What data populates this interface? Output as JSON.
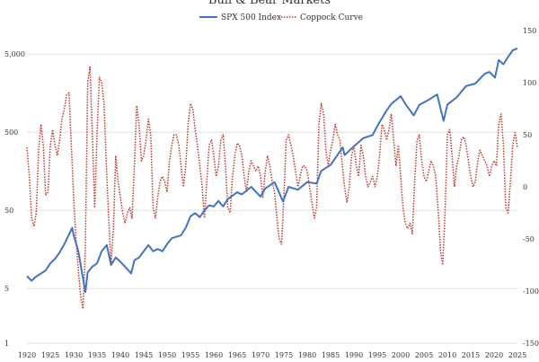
{
  "chart_data": {
    "type": "line",
    "title": "Bull & Bear Markets",
    "legend_position": "top-center",
    "grid": {
      "y_major": true
    },
    "x_axis": {
      "range": [
        1920,
        2025
      ],
      "ticks": [
        "1920",
        "1925",
        "1930",
        "1935",
        "1940",
        "1945",
        "1950",
        "1955",
        "1960",
        "1965",
        "1970",
        "1975",
        "1980",
        "1985",
        "1990",
        "1995",
        "2000",
        "2005",
        "2010",
        "2015",
        "2020",
        "2025"
      ]
    },
    "y_left": {
      "scale": "log",
      "range": [
        1,
        10000
      ],
      "ticks": [
        {
          "value": 1,
          "label": "1"
        },
        {
          "value": 5,
          "label": "5"
        },
        {
          "value": 50,
          "label": "50"
        },
        {
          "value": 500,
          "label": "500"
        },
        {
          "value": 5000,
          "label": "5,000"
        }
      ]
    },
    "y_right": {
      "scale": "linear",
      "range": [
        -150,
        150
      ],
      "ticks": [
        "-150",
        "-100",
        "-50",
        "0",
        "50",
        "100",
        "150"
      ]
    },
    "series": [
      {
        "name": "SPX 500 Index",
        "axis": "left",
        "color": "#4472c4",
        "style": "solid",
        "points": [
          [
            1920,
            7.2
          ],
          [
            1921,
            6.3
          ],
          [
            1921.8,
            7.0
          ],
          [
            1923,
            7.8
          ],
          [
            1924,
            8.5
          ],
          [
            1925,
            10.5
          ],
          [
            1926,
            12.0
          ],
          [
            1927,
            14.5
          ],
          [
            1928,
            18.5
          ],
          [
            1929.7,
            30.0
          ],
          [
            1930,
            24.0
          ],
          [
            1931,
            15.0
          ],
          [
            1932.5,
            4.5
          ],
          [
            1933,
            8.0
          ],
          [
            1934,
            9.5
          ],
          [
            1935,
            10.5
          ],
          [
            1936,
            15.0
          ],
          [
            1937.1,
            18.0
          ],
          [
            1938,
            10.0
          ],
          [
            1939,
            12.5
          ],
          [
            1940,
            11.0
          ],
          [
            1941,
            9.5
          ],
          [
            1942.3,
            7.8
          ],
          [
            1943,
            11.5
          ],
          [
            1944,
            12.5
          ],
          [
            1946,
            18.0
          ],
          [
            1947,
            15.0
          ],
          [
            1948,
            16.0
          ],
          [
            1949,
            15.0
          ],
          [
            1950,
            18.5
          ],
          [
            1951,
            22.0
          ],
          [
            1953,
            24.0
          ],
          [
            1954,
            30.0
          ],
          [
            1955,
            42.0
          ],
          [
            1956,
            46.0
          ],
          [
            1957,
            41.0
          ],
          [
            1958,
            50.0
          ],
          [
            1959,
            58.0
          ],
          [
            1960,
            56.0
          ],
          [
            1961,
            66.0
          ],
          [
            1962,
            56.0
          ],
          [
            1963,
            70.0
          ],
          [
            1965,
            85.0
          ],
          [
            1966,
            80.0
          ],
          [
            1968,
            100.0
          ],
          [
            1970,
            75.0
          ],
          [
            1971,
            95.0
          ],
          [
            1973,
            115.0
          ],
          [
            1974.8,
            65.0
          ],
          [
            1976,
            100.0
          ],
          [
            1978,
            92.0
          ],
          [
            1980,
            115.0
          ],
          [
            1982,
            110.0
          ],
          [
            1983,
            160.0
          ],
          [
            1985,
            190.0
          ],
          [
            1987.6,
            320.0
          ],
          [
            1988,
            255.0
          ],
          [
            1990,
            330.0
          ],
          [
            1992,
            420.0
          ],
          [
            1994,
            460.0
          ],
          [
            1995,
            600.0
          ],
          [
            1997,
            950.0
          ],
          [
            1998,
            1150.0
          ],
          [
            2000,
            1450.0
          ],
          [
            2001,
            1150.0
          ],
          [
            2002.8,
            820.0
          ],
          [
            2004,
            1120.0
          ],
          [
            2006,
            1300.0
          ],
          [
            2007.8,
            1520.0
          ],
          [
            2009.2,
            700.0
          ],
          [
            2010,
            1130.0
          ],
          [
            2012,
            1400.0
          ],
          [
            2014,
            1950.0
          ],
          [
            2016,
            2100.0
          ],
          [
            2018,
            2800.0
          ],
          [
            2019,
            2950.0
          ],
          [
            2020.2,
            2500.0
          ],
          [
            2021,
            4200.0
          ],
          [
            2022,
            3700.0
          ],
          [
            2023,
            4600.0
          ],
          [
            2024,
            5600.0
          ],
          [
            2025,
            5900.0
          ]
        ]
      },
      {
        "name": "Coppock Curve",
        "axis": "right",
        "color": "#c0392b",
        "style": "dotted",
        "points": [
          [
            1920,
            38
          ],
          [
            1920.5,
            10
          ],
          [
            1921,
            -30
          ],
          [
            1921.5,
            -38
          ],
          [
            1922,
            -25
          ],
          [
            1922.5,
            35
          ],
          [
            1923,
            60
          ],
          [
            1923.5,
            40
          ],
          [
            1924,
            -8
          ],
          [
            1924.5,
            -5
          ],
          [
            1925,
            40
          ],
          [
            1925.5,
            55
          ],
          [
            1926,
            40
          ],
          [
            1926.5,
            30
          ],
          [
            1927,
            45
          ],
          [
            1927.5,
            65
          ],
          [
            1928,
            75
          ],
          [
            1928.5,
            88
          ],
          [
            1929,
            90
          ],
          [
            1929.5,
            40
          ],
          [
            1930,
            -10
          ],
          [
            1930.5,
            -50
          ],
          [
            1931,
            -80
          ],
          [
            1931.5,
            -105
          ],
          [
            1932,
            -117
          ],
          [
            1932.5,
            -60
          ],
          [
            1933,
            100
          ],
          [
            1933.5,
            115
          ],
          [
            1934,
            50
          ],
          [
            1934.5,
            -20
          ],
          [
            1935,
            50
          ],
          [
            1935.5,
            105
          ],
          [
            1936,
            100
          ],
          [
            1936.5,
            80
          ],
          [
            1937,
            20
          ],
          [
            1937.5,
            -30
          ],
          [
            1938,
            -75
          ],
          [
            1938.5,
            -40
          ],
          [
            1939,
            30
          ],
          [
            1939.5,
            5
          ],
          [
            1940,
            -10
          ],
          [
            1940.5,
            -25
          ],
          [
            1941,
            -35
          ],
          [
            1941.5,
            -25
          ],
          [
            1942,
            -20
          ],
          [
            1942.5,
            -30
          ],
          [
            1943,
            20
          ],
          [
            1943.5,
            78
          ],
          [
            1944,
            60
          ],
          [
            1944.5,
            25
          ],
          [
            1945,
            30
          ],
          [
            1945.5,
            45
          ],
          [
            1946,
            65
          ],
          [
            1946.5,
            50
          ],
          [
            1947,
            -20
          ],
          [
            1947.5,
            -30
          ],
          [
            1948,
            -10
          ],
          [
            1948.5,
            5
          ],
          [
            1949,
            10
          ],
          [
            1949.5,
            5
          ],
          [
            1950,
            -5
          ],
          [
            1950.5,
            25
          ],
          [
            1951,
            40
          ],
          [
            1951.5,
            50
          ],
          [
            1952,
            50
          ],
          [
            1952.5,
            40
          ],
          [
            1953,
            20
          ],
          [
            1953.5,
            0
          ],
          [
            1954,
            20
          ],
          [
            1954.5,
            60
          ],
          [
            1955,
            80
          ],
          [
            1955.5,
            75
          ],
          [
            1956,
            55
          ],
          [
            1956.5,
            40
          ],
          [
            1957,
            20
          ],
          [
            1957.5,
            0
          ],
          [
            1958,
            -30
          ],
          [
            1958.5,
            5
          ],
          [
            1959,
            40
          ],
          [
            1959.5,
            45
          ],
          [
            1960,
            30
          ],
          [
            1960.5,
            10
          ],
          [
            1961,
            20
          ],
          [
            1961.5,
            45
          ],
          [
            1962,
            50
          ],
          [
            1962.5,
            20
          ],
          [
            1963,
            -20
          ],
          [
            1963.5,
            -25
          ],
          [
            1964,
            10
          ],
          [
            1964.5,
            30
          ],
          [
            1965,
            42
          ],
          [
            1965.5,
            40
          ],
          [
            1966,
            30
          ],
          [
            1966.5,
            10
          ],
          [
            1967,
            -5
          ],
          [
            1967.5,
            15
          ],
          [
            1968,
            25
          ],
          [
            1968.5,
            20
          ],
          [
            1969,
            15
          ],
          [
            1969.5,
            20
          ],
          [
            1970,
            10
          ],
          [
            1970.5,
            -10
          ],
          [
            1971,
            15
          ],
          [
            1971.5,
            30
          ],
          [
            1972,
            20
          ],
          [
            1972.5,
            5
          ],
          [
            1973,
            -5
          ],
          [
            1973.5,
            -30
          ],
          [
            1974,
            -50
          ],
          [
            1974.5,
            -55
          ],
          [
            1975,
            -10
          ],
          [
            1975.5,
            45
          ],
          [
            1976,
            50
          ],
          [
            1976.5,
            40
          ],
          [
            1977,
            30
          ],
          [
            1977.5,
            15
          ],
          [
            1978,
            0
          ],
          [
            1978.5,
            10
          ],
          [
            1979,
            20
          ],
          [
            1979.5,
            20
          ],
          [
            1980,
            15
          ],
          [
            1980.5,
            0
          ],
          [
            1981,
            -15
          ],
          [
            1981.5,
            -30
          ],
          [
            1982,
            -20
          ],
          [
            1982.5,
            60
          ],
          [
            1983,
            80
          ],
          [
            1983.5,
            70
          ],
          [
            1984,
            35
          ],
          [
            1984.5,
            20
          ],
          [
            1985,
            35
          ],
          [
            1985.5,
            45
          ],
          [
            1986,
            60
          ],
          [
            1986.5,
            50
          ],
          [
            1987,
            45
          ],
          [
            1987.5,
            20
          ],
          [
            1988,
            0
          ],
          [
            1988.5,
            -15
          ],
          [
            1989,
            0
          ],
          [
            1989.5,
            30
          ],
          [
            1990,
            40
          ],
          [
            1990.5,
            20
          ],
          [
            1991,
            10
          ],
          [
            1991.5,
            40
          ],
          [
            1992,
            30
          ],
          [
            1992.5,
            10
          ],
          [
            1993,
            0
          ],
          [
            1993.5,
            5
          ],
          [
            1994,
            10
          ],
          [
            1994.5,
            0
          ],
          [
            1995,
            10
          ],
          [
            1995.5,
            30
          ],
          [
            1996,
            60
          ],
          [
            1996.5,
            55
          ],
          [
            1997,
            45
          ],
          [
            1997.5,
            55
          ],
          [
            1998,
            70
          ],
          [
            1998.5,
            45
          ],
          [
            1999,
            20
          ],
          [
            1999.5,
            40
          ],
          [
            2000,
            10
          ],
          [
            2000.5,
            -20
          ],
          [
            2001,
            -35
          ],
          [
            2001.5,
            -40
          ],
          [
            2002,
            -35
          ],
          [
            2002.5,
            -45
          ],
          [
            2003,
            5
          ],
          [
            2003.5,
            45
          ],
          [
            2004,
            50
          ],
          [
            2004.5,
            25
          ],
          [
            2005,
            10
          ],
          [
            2005.5,
            5
          ],
          [
            2006,
            15
          ],
          [
            2006.5,
            25
          ],
          [
            2007,
            20
          ],
          [
            2007.5,
            10
          ],
          [
            2008,
            -20
          ],
          [
            2008.5,
            -60
          ],
          [
            2009,
            -75
          ],
          [
            2009.5,
            -25
          ],
          [
            2010,
            50
          ],
          [
            2010.5,
            55
          ],
          [
            2011,
            30
          ],
          [
            2011.5,
            0
          ],
          [
            2012,
            20
          ],
          [
            2012.5,
            30
          ],
          [
            2013,
            45
          ],
          [
            2013.5,
            48
          ],
          [
            2014,
            40
          ],
          [
            2014.5,
            25
          ],
          [
            2015,
            10
          ],
          [
            2015.5,
            0
          ],
          [
            2016,
            5
          ],
          [
            2016.5,
            25
          ],
          [
            2017,
            35
          ],
          [
            2017.5,
            30
          ],
          [
            2018,
            25
          ],
          [
            2018.5,
            20
          ],
          [
            2019,
            10
          ],
          [
            2019.5,
            20
          ],
          [
            2020,
            25
          ],
          [
            2020.5,
            20
          ],
          [
            2021,
            60
          ],
          [
            2021.5,
            70
          ],
          [
            2022,
            40
          ],
          [
            2022.5,
            -20
          ],
          [
            2023,
            -25
          ],
          [
            2023.5,
            5
          ],
          [
            2024,
            40
          ],
          [
            2024.5,
            52
          ],
          [
            2025,
            38
          ]
        ]
      }
    ]
  }
}
